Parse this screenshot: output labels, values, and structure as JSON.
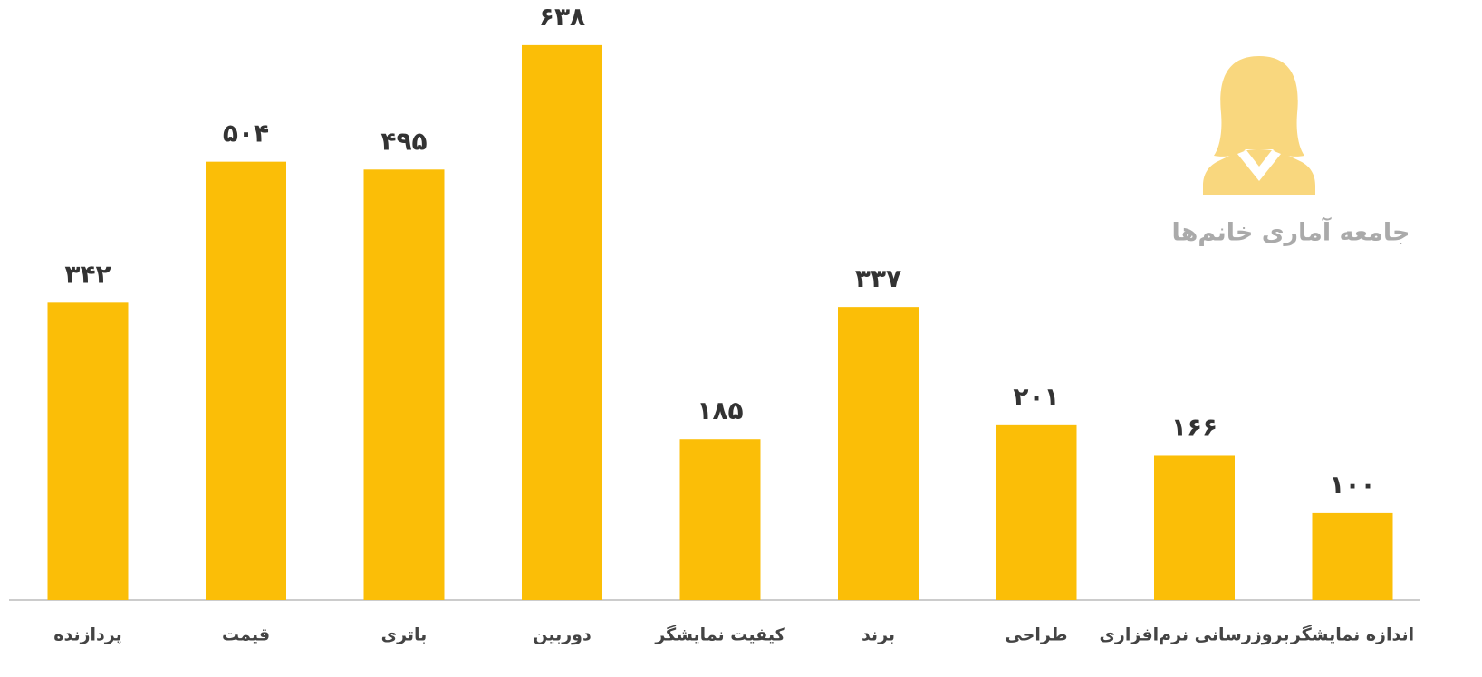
{
  "chart_data": {
    "type": "bar",
    "title": "جامعه آماری خانم‌ها",
    "categories": [
      "پردازنده",
      "قیمت",
      "باتری",
      "دوربین",
      "کیفیت نمایشگر",
      "برند",
      "طراحی",
      "بروزرسانی نرم‌افزاری",
      "اندازه نمایشگر"
    ],
    "values": [
      342,
      504,
      495,
      638,
      185,
      337,
      201,
      166,
      100
    ],
    "value_labels": [
      "۳۴۲",
      "۵۰۴",
      "۴۹۵",
      "۶۳۸",
      "۱۸۵",
      "۳۳۷",
      "۲۰۱",
      "۱۶۶",
      "۱۰۰"
    ],
    "color": "#fbbe07"
  }
}
